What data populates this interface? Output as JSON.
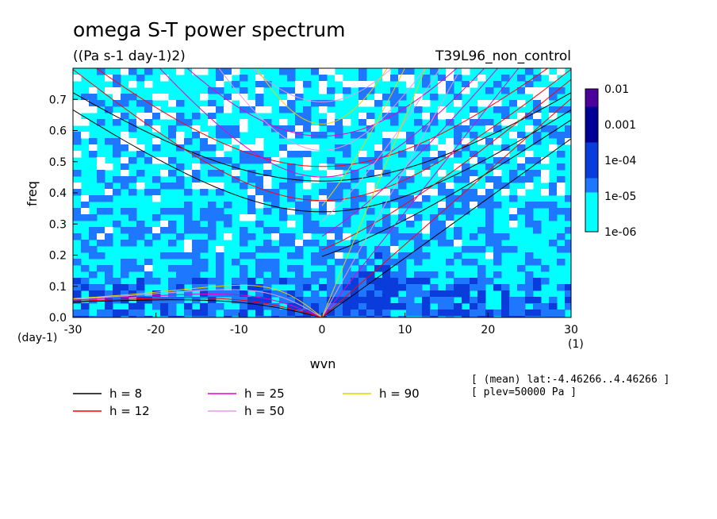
{
  "chart_data": {
    "type": "heatmap",
    "title": "omega S-T power spectrum",
    "subtitle": "((Pa s-1 day-1)2)",
    "experiment": "T39L96_non_control",
    "xlabel": "wvn",
    "ylabel": "freq",
    "x_unit": "(1)",
    "y_unit": "(day-1)",
    "xlim": [
      -30,
      30
    ],
    "ylim": [
      0,
      0.8
    ],
    "x_ticks": [
      -30,
      -20,
      -10,
      0,
      10,
      20,
      30
    ],
    "x_tick_labels": [
      "-30",
      "-20",
      "-10",
      "0",
      "10",
      "20",
      "30"
    ],
    "y_ticks": [
      0,
      0.1,
      0.2,
      0.3,
      0.4,
      0.5,
      0.6,
      0.7
    ],
    "y_tick_labels": [
      "0.0",
      "0.1",
      "0.2",
      "0.3",
      "0.4",
      "0.5",
      "0.6",
      "0.7"
    ],
    "colorbar": {
      "levels": [
        "1e-06",
        "1e-05",
        "1e-04",
        "0.001",
        "0.01"
      ],
      "colors": [
        "#ffffff",
        "#00ffff",
        "#1e78ff",
        "#0a3cdc",
        "#000096",
        "#4b009b"
      ]
    },
    "dispersion_curves": [
      {
        "label": "h =  8",
        "h": 8,
        "color": "#000000"
      },
      {
        "label": "h = 12",
        "h": 12,
        "color": "#ff0000"
      },
      {
        "label": "h = 25",
        "h": 25,
        "color": "#e600c8"
      },
      {
        "label": "h = 50",
        "h": 50,
        "color": "#e69be6"
      },
      {
        "label": "h = 90",
        "h": 90,
        "color": "#e6d200"
      }
    ],
    "notes": [
      "[ (mean) lat:-4.46266..4.46266 ]",
      "[ plev=50000 Pa ]"
    ]
  }
}
